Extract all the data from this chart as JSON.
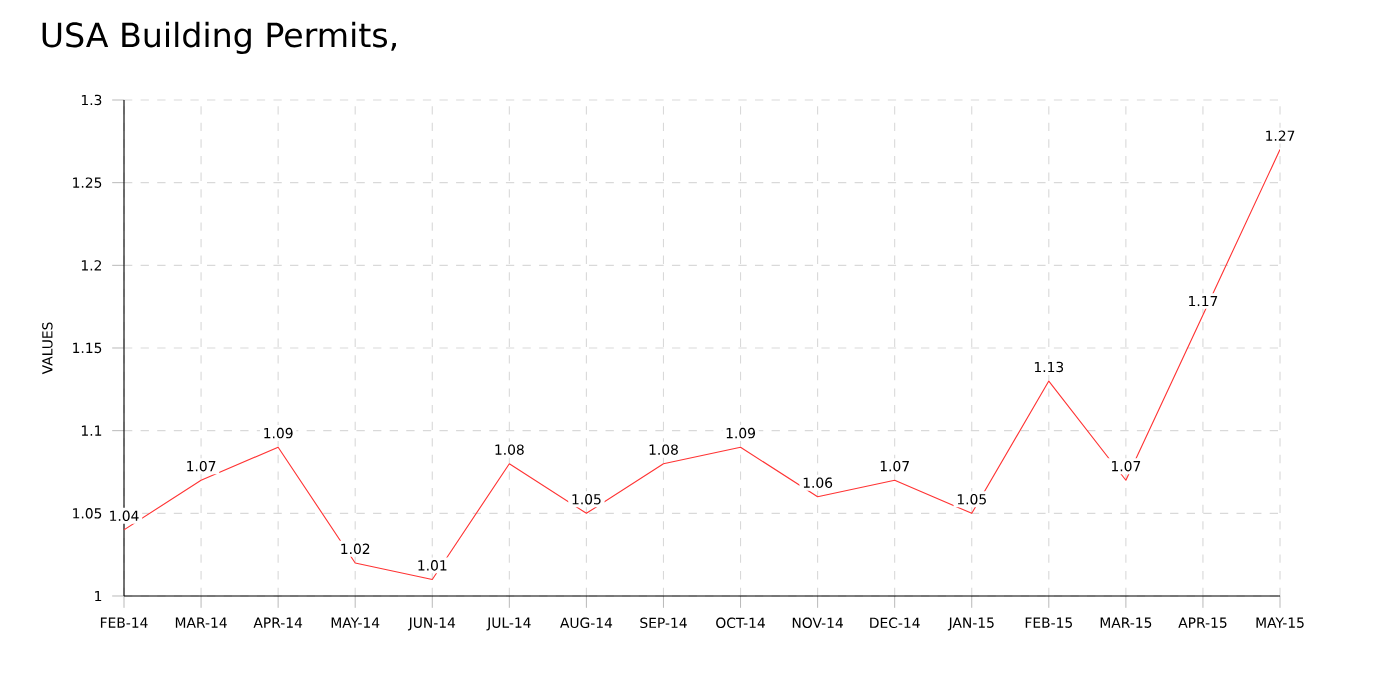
{
  "chart_data": {
    "type": "line",
    "title": "USA Building Permits,",
    "ylabel": "VALUES",
    "categories": [
      "FEB-14",
      "MAR-14",
      "APR-14",
      "MAY-14",
      "JUN-14",
      "JUL-14",
      "AUG-14",
      "SEP-14",
      "OCT-14",
      "NOV-14",
      "DEC-14",
      "JAN-15",
      "FEB-15",
      "MAR-15",
      "APR-15",
      "MAY-15"
    ],
    "values": [
      1.04,
      1.07,
      1.09,
      1.02,
      1.01,
      1.08,
      1.05,
      1.08,
      1.09,
      1.06,
      1.07,
      1.05,
      1.13,
      1.07,
      1.17,
      1.27
    ],
    "color": "#ff3333",
    "ylim": [
      1,
      1.3
    ],
    "yticks": [
      1,
      1.05,
      1.1,
      1.15,
      1.2,
      1.25,
      1.3
    ],
    "grid": true,
    "data_labels": true,
    "marker": "none",
    "line_style": "solid"
  }
}
